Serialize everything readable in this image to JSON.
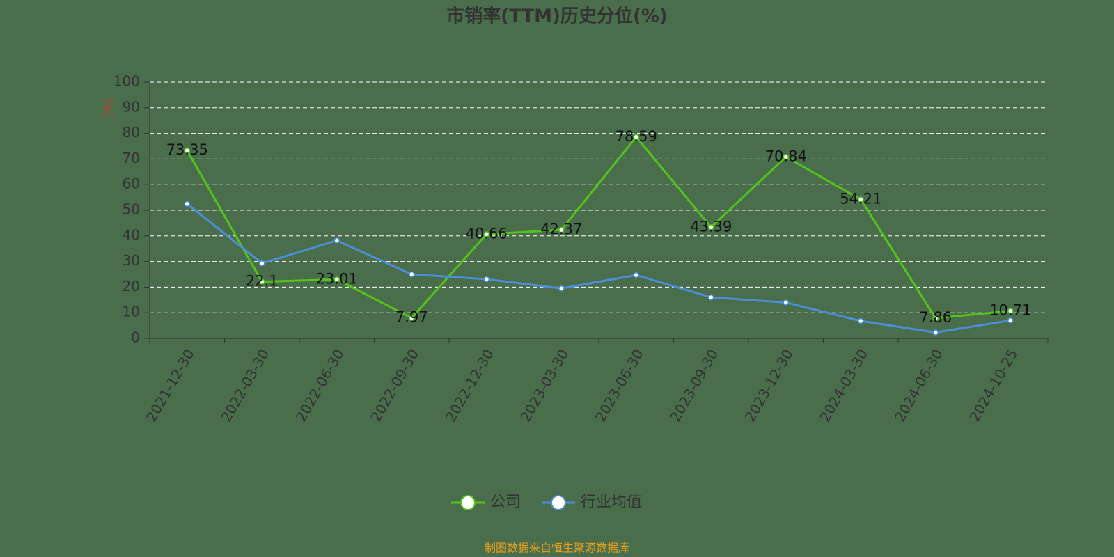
{
  "chart_data": {
    "type": "line",
    "title": "市销率(TTM)历史分位(%)",
    "y_label": "(%)",
    "footer": "制图数据来自恒生聚源数据库",
    "categories": [
      "2021-12-30",
      "2022-03-30",
      "2022-06-30",
      "2022-09-30",
      "2022-12-30",
      "2023-03-30",
      "2023-06-30",
      "2023-09-30",
      "2023-12-30",
      "2024-03-30",
      "2024-06-30",
      "2024-10-25"
    ],
    "series": [
      {
        "name": "公司",
        "color": "#52c41a",
        "values": [
          73.35,
          22.1,
          23.01,
          7.97,
          40.66,
          42.37,
          78.59,
          43.39,
          70.84,
          54.21,
          7.86,
          10.71
        ]
      },
      {
        "name": "行业均值",
        "color": "#4a8fd8",
        "values": [
          52.5,
          29.3,
          38.2,
          25,
          23.1,
          19.5,
          24.7,
          16,
          14,
          6.8,
          2.3,
          7
        ]
      }
    ],
    "ylim": [
      0,
      100
    ],
    "yticks": [
      0,
      10,
      20,
      30,
      40,
      50,
      60,
      70,
      80,
      90,
      100
    ],
    "grid": true
  }
}
